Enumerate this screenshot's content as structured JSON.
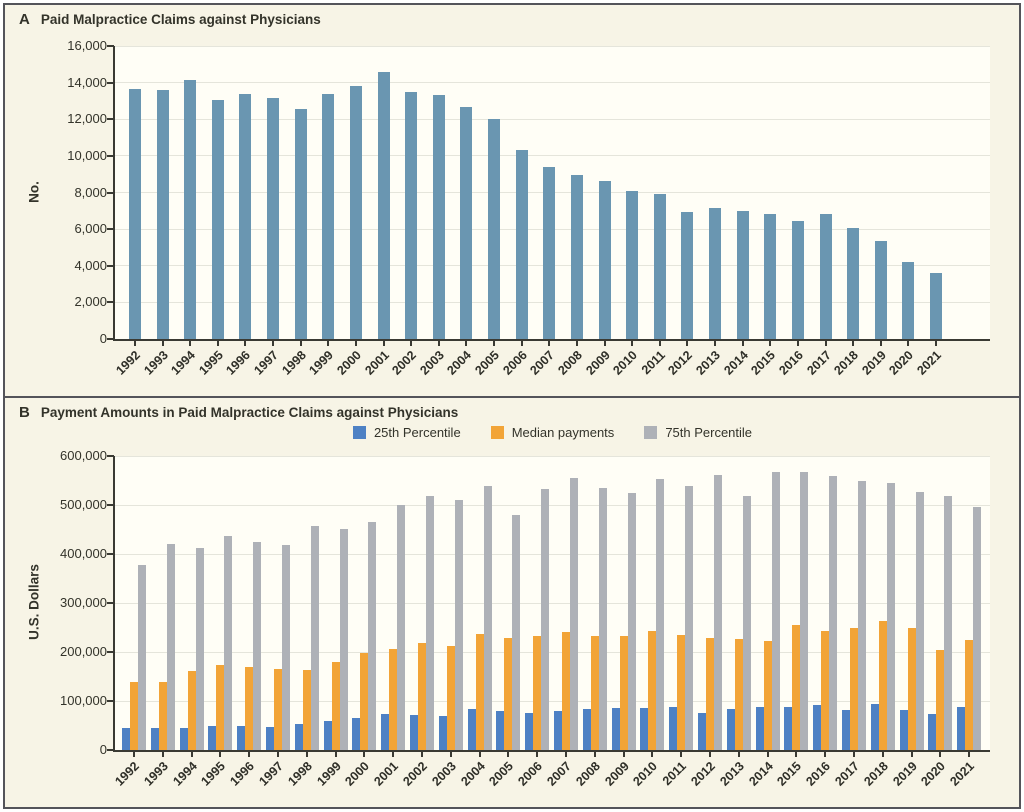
{
  "figure": {
    "background_color": "#f7f4e6",
    "plot_background_color": "#fffef6",
    "frame_border_color": "#54545a",
    "axis_color": "#3a3a33",
    "gridline_color": "#e5e5db",
    "text_color": "#33332a"
  },
  "chart_data": [
    {
      "type": "bar",
      "panel": "A",
      "title": "Paid Malpractice Claims against Physicians",
      "xlabel": "",
      "ylabel": "No.",
      "ylim": [
        0,
        16000
      ],
      "ytick_step": 2000,
      "yticks": [
        "0",
        "2,000",
        "4,000",
        "6,000",
        "8,000",
        "10,000",
        "12,000",
        "14,000",
        "16,000"
      ],
      "grid": true,
      "legend": null,
      "bar_color": "#6a96b1",
      "categories": [
        "1992",
        "1993",
        "1994",
        "1995",
        "1996",
        "1997",
        "1998",
        "1999",
        "2000",
        "2001",
        "2002",
        "2003",
        "2004",
        "2005",
        "2006",
        "2007",
        "2008",
        "2009",
        "2010",
        "2011",
        "2012",
        "2013",
        "2014",
        "2015",
        "2016",
        "2017",
        "2018",
        "2019",
        "2020",
        "2021"
      ],
      "values": [
        13650,
        13600,
        14150,
        13050,
        13400,
        13150,
        12550,
        13400,
        13800,
        14600,
        13500,
        13300,
        12650,
        12000,
        10300,
        9400,
        8950,
        8650,
        8100,
        7900,
        6950,
        7150,
        7000,
        6850,
        6450,
        6850,
        6050,
        5350,
        4200,
        3600
      ]
    },
    {
      "type": "bar",
      "panel": "B",
      "title": "Payment Amounts in Paid Malpractice Claims against Physicians",
      "xlabel": "",
      "ylabel": "U.S. Dollars",
      "ylim": [
        0,
        600000
      ],
      "ytick_step": 100000,
      "yticks": [
        "0",
        "100,000",
        "200,000",
        "300,000",
        "400,000",
        "500,000",
        "600,000"
      ],
      "grid": true,
      "legend_position": "top",
      "categories": [
        "1992",
        "1993",
        "1994",
        "1995",
        "1996",
        "1997",
        "1998",
        "1999",
        "2000",
        "2001",
        "2002",
        "2003",
        "2004",
        "2005",
        "2006",
        "2007",
        "2008",
        "2009",
        "2010",
        "2011",
        "2012",
        "2013",
        "2014",
        "2015",
        "2016",
        "2017",
        "2018",
        "2019",
        "2020",
        "2021"
      ],
      "series": [
        {
          "name": "25th Percentile",
          "color": "#4e81c4",
          "values": [
            44000,
            44000,
            44000,
            48000,
            48000,
            47000,
            53000,
            59000,
            66000,
            73000,
            71000,
            69000,
            83000,
            79000,
            76000,
            80000,
            84000,
            85000,
            85000,
            88000,
            76000,
            83000,
            87000,
            88000,
            92000,
            81000,
            93000,
            81000,
            74000,
            87000
          ]
        },
        {
          "name": "Median payments",
          "color": "#f2a437",
          "values": [
            139000,
            139000,
            161000,
            173000,
            169000,
            165000,
            163000,
            180000,
            197000,
            207000,
            218000,
            213000,
            237000,
            228000,
            233000,
            241000,
            232000,
            232000,
            242000,
            234000,
            229000,
            226000,
            222000,
            256000,
            242000,
            248000,
            264000,
            248000,
            204000,
            225000
          ]
        },
        {
          "name": "75th Percentile",
          "color": "#aeb1b7",
          "values": [
            377000,
            421000,
            412000,
            436000,
            424000,
            418000,
            458000,
            450000,
            466000,
            499000,
            519000,
            510000,
            539000,
            480000,
            532000,
            556000,
            535000,
            525000,
            554000,
            538000,
            561000,
            519000,
            568000,
            568000,
            560000,
            549000,
            545000,
            526000,
            519000,
            495000
          ]
        }
      ]
    }
  ]
}
